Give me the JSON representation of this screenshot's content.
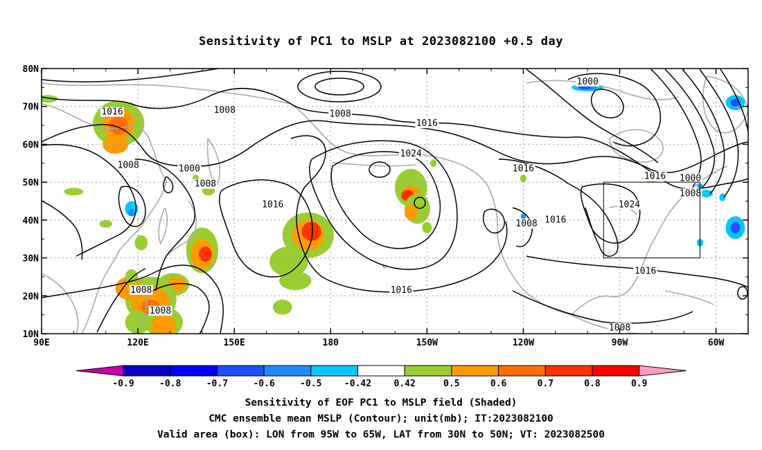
{
  "title": "Sensitivity of PC1 to MSLP at 2023082100 +0.5 day",
  "axes": {
    "lat_labels": [
      "80N",
      "70N",
      "60N",
      "50N",
      "40N",
      "30N",
      "20N",
      "10N"
    ],
    "lon_labels": [
      "90E",
      "120E",
      "150E",
      "180",
      "150W",
      "120W",
      "90W",
      "60W"
    ]
  },
  "contour_labels": [
    {
      "text": "1016",
      "lon": 112,
      "lat": 68
    },
    {
      "text": "1008",
      "lon": 147,
      "lat": 68.5
    },
    {
      "text": "1008",
      "lon": 183,
      "lat": 67.5
    },
    {
      "text": "1016",
      "lon": 210,
      "lat": 65
    },
    {
      "text": "1000",
      "lon": 260,
      "lat": 76
    },
    {
      "text": "1024",
      "lon": 205,
      "lat": 57
    },
    {
      "text": "1016",
      "lon": 240,
      "lat": 53
    },
    {
      "text": "1016",
      "lon": 281,
      "lat": 51
    },
    {
      "text": "1000",
      "lon": 292,
      "lat": 50.5
    },
    {
      "text": "1008",
      "lon": 292,
      "lat": 46.5
    },
    {
      "text": "1008",
      "lon": 117,
      "lat": 54
    },
    {
      "text": "1000",
      "lon": 136,
      "lat": 53
    },
    {
      "text": "1008",
      "lon": 141,
      "lat": 49
    },
    {
      "text": "1016",
      "lon": 162,
      "lat": 43.5
    },
    {
      "text": "1024",
      "lon": 273,
      "lat": 43.5
    },
    {
      "text": "1008",
      "lon": 241,
      "lat": 38.5
    },
    {
      "text": "1016",
      "lon": 250,
      "lat": 39.5
    },
    {
      "text": "1016",
      "lon": 278,
      "lat": 26
    },
    {
      "text": "1016",
      "lon": 202,
      "lat": 21
    },
    {
      "text": "1008",
      "lon": 121,
      "lat": 21
    },
    {
      "text": "1008",
      "lon": 127,
      "lat": 15.5
    },
    {
      "text": "1008",
      "lon": 270,
      "lat": 11
    }
  ],
  "valid_box": {
    "lon_min": 265,
    "lon_max": 295,
    "lat_min": 30,
    "lat_max": 50
  },
  "colorbar": {
    "labels": [
      "-0.9",
      "-0.8",
      "-0.7",
      "-0.6",
      "-0.5",
      "-0.42",
      "0.42",
      "0.5",
      "0.6",
      "0.7",
      "0.8",
      "0.9"
    ],
    "colors": [
      "#c800aa",
      "#0a00c8",
      "#0000ff",
      "#1e50ff",
      "#1e8cff",
      "#00c8ff",
      "#ffffff",
      "#9acd32",
      "#ff9b00",
      "#ff6e00",
      "#ff3200",
      "#ff0000",
      "#ff9ebc"
    ]
  },
  "captions": [
    "Sensitivity of EOF PC1 to MSLP field (Shaded)",
    "CMC ensemble mean MSLP (Contour); unit(mb); IT:2023082100",
    "Valid area (box): LON from 95W to 65W, LAT from 30N to 50N; VT: 2023082500"
  ]
}
